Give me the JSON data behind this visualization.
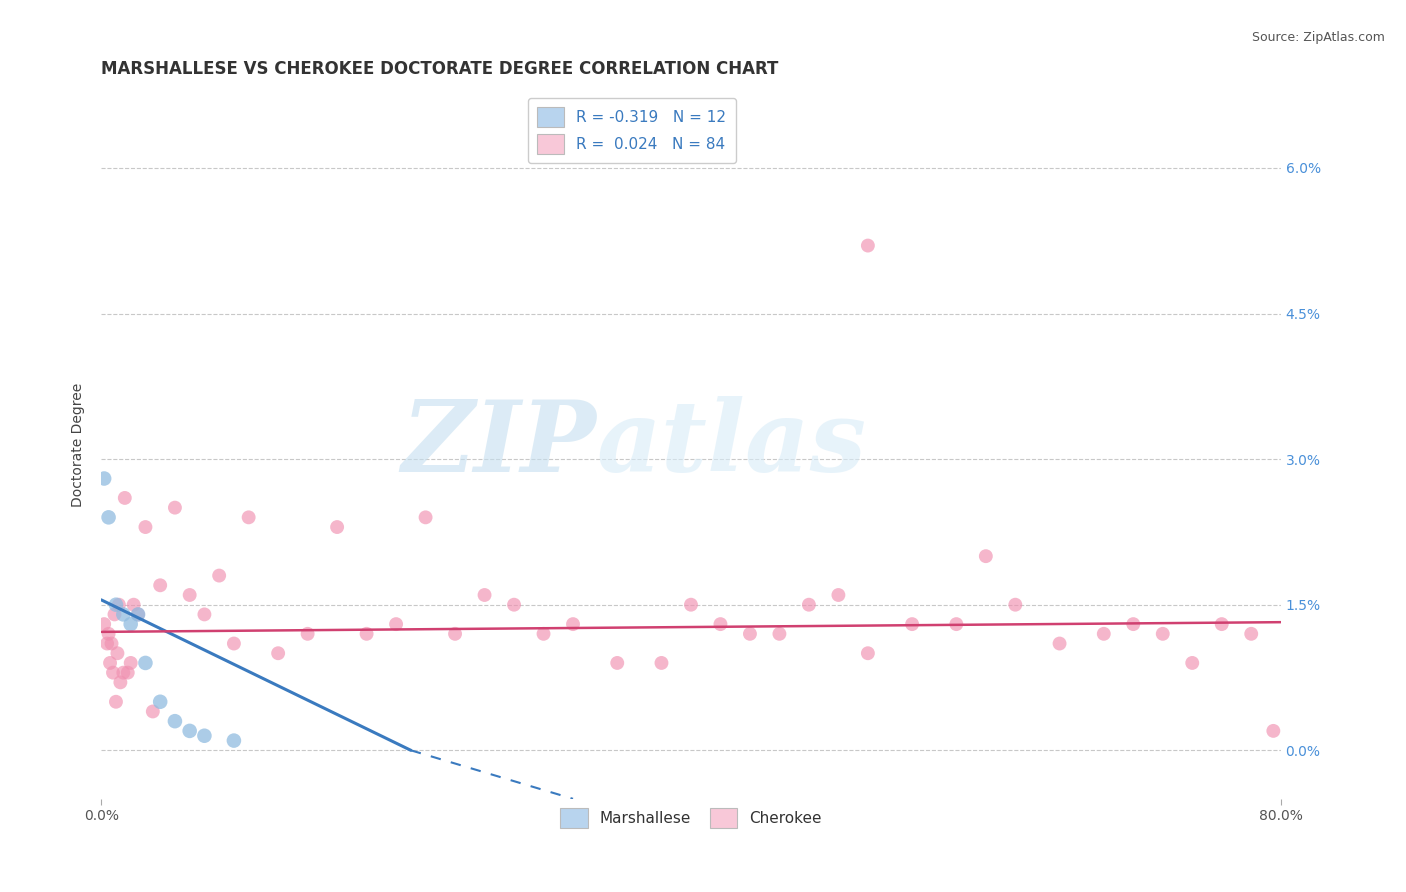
{
  "title": "MARSHALLESE VS CHEROKEE DOCTORATE DEGREE CORRELATION CHART",
  "source": "Source: ZipAtlas.com",
  "ylabel": "Doctorate Degree",
  "y_tick_values": [
    0.0,
    1.5,
    3.0,
    4.5,
    6.0
  ],
  "xmin": 0.0,
  "xmax": 80.0,
  "ymin": -0.5,
  "ymax": 6.8,
  "marshallese_R": -0.319,
  "marshallese_N": 12,
  "cherokee_R": 0.024,
  "cherokee_N": 84,
  "marshallese_legend_color": "#b8d4ee",
  "cherokee_legend_color": "#f8c8d8",
  "marshallese_dot_color": "#90bce0",
  "cherokee_dot_color": "#f090b0",
  "trend_marshallese_color": "#3a7abf",
  "trend_cherokee_color": "#d04070",
  "background_color": "#ffffff",
  "grid_color": "#c8c8c8",
  "marshallese_x": [
    0.2,
    0.5,
    1.0,
    1.5,
    2.0,
    2.5,
    3.0,
    4.0,
    5.0,
    6.0,
    7.0,
    9.0
  ],
  "marshallese_y": [
    2.8,
    2.4,
    1.5,
    1.4,
    1.3,
    1.4,
    0.9,
    0.5,
    0.3,
    0.2,
    0.15,
    0.1
  ],
  "cherokee_x": [
    0.2,
    0.4,
    0.5,
    0.6,
    0.7,
    0.8,
    0.9,
    1.0,
    1.1,
    1.2,
    1.3,
    1.5,
    1.6,
    1.8,
    2.0,
    2.2,
    2.5,
    3.0,
    3.5,
    4.0,
    5.0,
    6.0,
    7.0,
    8.0,
    9.0,
    10.0,
    12.0,
    14.0,
    16.0,
    18.0,
    20.0,
    22.0,
    24.0,
    26.0,
    28.0,
    30.0,
    32.0,
    35.0,
    38.0,
    40.0,
    42.0,
    44.0,
    46.0,
    48.0,
    50.0,
    52.0,
    55.0,
    58.0,
    60.0,
    62.0,
    65.0,
    68.0,
    70.0,
    72.0,
    74.0,
    76.0,
    78.0,
    79.5
  ],
  "cherokee_y": [
    1.3,
    1.1,
    1.2,
    0.9,
    1.1,
    0.8,
    1.4,
    0.5,
    1.0,
    1.5,
    0.7,
    0.8,
    2.6,
    0.8,
    0.9,
    1.5,
    1.4,
    2.3,
    0.4,
    1.7,
    2.5,
    1.6,
    1.4,
    1.8,
    1.1,
    2.4,
    1.0,
    1.2,
    2.3,
    1.2,
    1.3,
    2.4,
    1.2,
    1.6,
    1.5,
    1.2,
    1.3,
    0.9,
    0.9,
    1.5,
    1.3,
    1.2,
    1.2,
    1.5,
    1.6,
    1.0,
    1.3,
    1.3,
    2.0,
    1.5,
    1.1,
    1.2,
    1.3,
    1.2,
    0.9,
    1.3,
    1.2,
    0.2
  ],
  "cherokee_outlier_x": 52.0,
  "cherokee_outlier_y": 5.2,
  "trend_m_x0": 0.0,
  "trend_m_y0": 1.55,
  "trend_m_x1": 21.0,
  "trend_m_y1": 0.0,
  "trend_m_dash_x0": 21.0,
  "trend_m_dash_y0": 0.0,
  "trend_m_dash_x1": 32.0,
  "trend_m_dash_y1": -0.5,
  "trend_c_x0": 0.0,
  "trend_c_y0": 1.22,
  "trend_c_x1": 80.0,
  "trend_c_y1": 1.32,
  "watermark_zip": "ZIP",
  "watermark_atlas": "atlas",
  "title_fontsize": 12,
  "axis_label_fontsize": 10,
  "tick_fontsize": 10,
  "legend_fontsize": 11,
  "source_fontsize": 9
}
